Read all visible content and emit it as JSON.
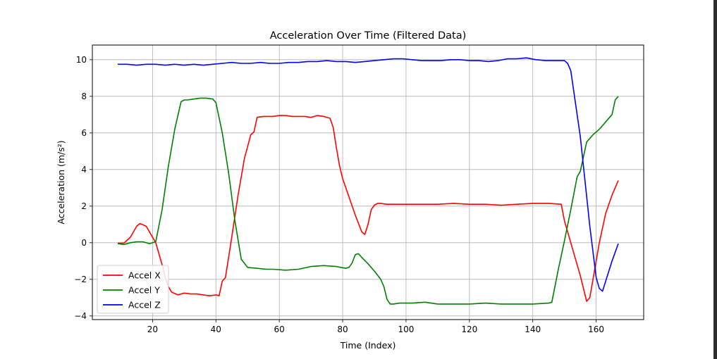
{
  "chart_data": {
    "type": "line",
    "title": "Acceleration Over Time (Filtered Data)",
    "xlabel": "Time (Index)",
    "ylabel": "Acceleration (m/s²)",
    "xlim": [
      1,
      175
    ],
    "ylim": [
      -4.2,
      10.8
    ],
    "xticks": [
      20,
      40,
      60,
      80,
      100,
      120,
      140,
      160
    ],
    "yticks": [
      -4,
      -2,
      0,
      2,
      4,
      6,
      8,
      10
    ],
    "xtick_labels": [
      "20",
      "40",
      "60",
      "80",
      "100",
      "120",
      "140",
      "160"
    ],
    "ytick_labels": [
      "−4",
      "−2",
      "0",
      "2",
      "4",
      "6",
      "8",
      "10"
    ],
    "grid": true,
    "legend_position": "lower-left",
    "series": [
      {
        "name": "Accel X",
        "color": "#ff0000",
        "x": [
          9,
          11,
          13,
          15,
          16,
          18,
          19,
          20,
          21,
          22,
          23,
          24,
          25,
          26,
          28,
          30,
          32,
          34,
          36,
          38,
          40,
          41,
          42,
          43,
          45,
          47,
          49,
          51,
          52,
          53,
          55,
          58,
          60,
          62,
          64,
          66,
          68,
          70,
          72,
          74,
          76,
          77,
          78,
          79,
          80,
          82,
          84,
          86,
          87,
          88,
          89,
          90,
          91,
          92,
          94,
          96,
          100,
          105,
          110,
          115,
          120,
          125,
          130,
          135,
          140,
          145,
          149,
          150,
          152,
          155,
          157,
          158,
          159,
          161,
          163,
          165,
          167
        ],
        "y": [
          -0.02,
          -0.02,
          0.3,
          0.9,
          1.05,
          0.9,
          0.6,
          0.3,
          0.0,
          -0.6,
          -1.2,
          -1.9,
          -2.4,
          -2.7,
          -2.85,
          -2.75,
          -2.8,
          -2.8,
          -2.85,
          -2.9,
          -2.85,
          -2.9,
          -2.1,
          -1.9,
          0.3,
          2.6,
          4.6,
          5.9,
          6.05,
          6.85,
          6.9,
          6.9,
          6.95,
          6.95,
          6.9,
          6.9,
          6.9,
          6.85,
          6.95,
          6.9,
          6.8,
          6.3,
          5.2,
          4.2,
          3.5,
          2.5,
          1.5,
          0.6,
          0.45,
          1.0,
          1.8,
          2.05,
          2.15,
          2.15,
          2.1,
          2.1,
          2.1,
          2.1,
          2.1,
          2.15,
          2.1,
          2.1,
          2.05,
          2.1,
          2.15,
          2.15,
          2.1,
          1.2,
          0.0,
          -1.8,
          -3.2,
          -3.0,
          -2.0,
          0.0,
          1.6,
          2.6,
          3.4
        ]
      },
      {
        "name": "Accel Y",
        "color": "#008000",
        "x": [
          9,
          11,
          13,
          15,
          17,
          19,
          21,
          23,
          25,
          27,
          29,
          30,
          31,
          33,
          35,
          37,
          39,
          40,
          42,
          44,
          46,
          48,
          50,
          53,
          56,
          58,
          62,
          66,
          70,
          74,
          78,
          81,
          82,
          83,
          84,
          85,
          86,
          88,
          90,
          92,
          93,
          94,
          95,
          96,
          98,
          102,
          106,
          110,
          115,
          120,
          125,
          130,
          135,
          140,
          145,
          146,
          148,
          150,
          152,
          154,
          155,
          157,
          159,
          161,
          163,
          165,
          166,
          167
        ],
        "y": [
          -0.05,
          -0.1,
          0.0,
          0.05,
          0.05,
          -0.05,
          0.05,
          1.8,
          4.2,
          6.2,
          7.7,
          7.8,
          7.8,
          7.85,
          7.9,
          7.9,
          7.85,
          7.65,
          6.0,
          3.8,
          1.2,
          -0.9,
          -1.35,
          -1.4,
          -1.45,
          -1.45,
          -1.5,
          -1.45,
          -1.3,
          -1.25,
          -1.3,
          -1.4,
          -1.35,
          -1.1,
          -0.65,
          -0.6,
          -0.8,
          -1.15,
          -1.55,
          -2.0,
          -2.4,
          -3.1,
          -3.35,
          -3.35,
          -3.3,
          -3.3,
          -3.25,
          -3.35,
          -3.35,
          -3.35,
          -3.3,
          -3.35,
          -3.35,
          -3.35,
          -3.3,
          -3.25,
          -1.5,
          0.1,
          1.8,
          3.6,
          3.9,
          5.5,
          5.9,
          6.2,
          6.6,
          7.0,
          7.8,
          8.0
        ]
      },
      {
        "name": "Accel Z",
        "color": "#0000ff",
        "x": [
          9,
          12,
          15,
          18,
          21,
          24,
          27,
          30,
          33,
          36,
          39,
          42,
          45,
          48,
          51,
          54,
          57,
          60,
          63,
          66,
          69,
          72,
          75,
          78,
          81,
          84,
          87,
          90,
          93,
          96,
          99,
          102,
          105,
          108,
          111,
          114,
          117,
          120,
          123,
          126,
          129,
          132,
          135,
          138,
          141,
          144,
          147,
          150,
          151,
          152,
          155,
          158,
          160,
          161,
          162,
          163,
          165,
          167
        ],
        "y": [
          9.75,
          9.75,
          9.7,
          9.75,
          9.75,
          9.7,
          9.75,
          9.7,
          9.75,
          9.7,
          9.75,
          9.8,
          9.85,
          9.8,
          9.8,
          9.85,
          9.8,
          9.8,
          9.85,
          9.85,
          9.9,
          9.9,
          9.95,
          9.9,
          9.9,
          9.85,
          9.9,
          9.95,
          10.0,
          10.05,
          10.05,
          10.0,
          9.95,
          9.95,
          9.95,
          10.0,
          10.0,
          9.95,
          9.95,
          9.9,
          9.95,
          10.05,
          10.05,
          10.1,
          10.0,
          9.95,
          9.95,
          9.95,
          9.8,
          9.4,
          5.8,
          0.9,
          -1.9,
          -2.5,
          -2.65,
          -2.1,
          -1.0,
          -0.05
        ]
      }
    ]
  }
}
